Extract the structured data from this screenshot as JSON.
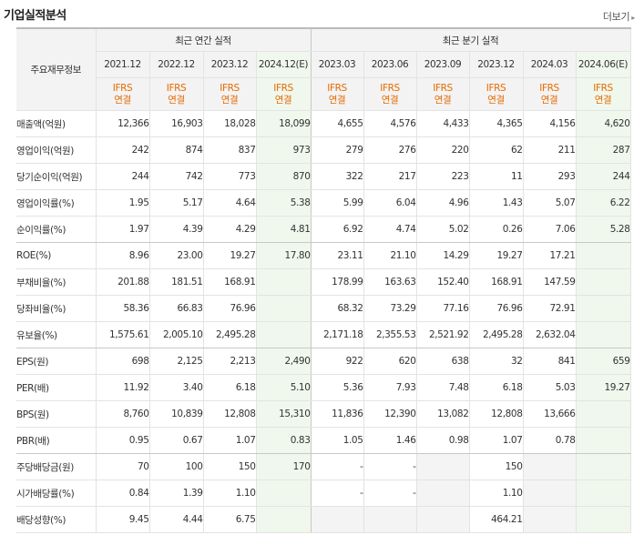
{
  "header": {
    "title": "기업실적분석",
    "more_label": "더보기",
    "more_icon": "arrow-right-icon"
  },
  "table": {
    "item_header": "주요재무정보",
    "group_annual": "최근 연간 실적",
    "group_quarter": "최근 분기 실적",
    "periods": [
      "2021.12",
      "2022.12",
      "2023.12",
      "2024.12(E)",
      "2023.03",
      "2023.06",
      "2023.09",
      "2023.12",
      "2024.03",
      "2024.06(E)"
    ],
    "standard_top": "IFRS",
    "standard_bottom": "연결",
    "estimate_color": "#f0f8ed",
    "standard_color": "#e66a00",
    "rows": [
      {
        "label": "매출액(억원)",
        "values": [
          "12,366",
          "16,903",
          "18,028",
          "18,099",
          "4,655",
          "4,576",
          "4,433",
          "4,365",
          "4,156",
          "4,620"
        ]
      },
      {
        "label": "영업이익(억원)",
        "values": [
          "242",
          "874",
          "837",
          "973",
          "279",
          "276",
          "220",
          "62",
          "211",
          "287"
        ]
      },
      {
        "label": "당기순이익(억원)",
        "values": [
          "244",
          "742",
          "773",
          "870",
          "322",
          "217",
          "223",
          "11",
          "293",
          "244"
        ]
      },
      {
        "label": "영업이익률(%)",
        "values": [
          "1.95",
          "5.17",
          "4.64",
          "5.38",
          "5.99",
          "6.04",
          "4.96",
          "1.43",
          "5.07",
          "6.22"
        ]
      },
      {
        "label": "순이익률(%)",
        "values": [
          "1.97",
          "4.39",
          "4.29",
          "4.81",
          "6.92",
          "4.74",
          "5.02",
          "0.26",
          "7.06",
          "5.28"
        ]
      },
      {
        "label": "ROE(%)",
        "values": [
          "8.96",
          "23.00",
          "19.27",
          "17.80",
          "23.11",
          "21.10",
          "14.29",
          "19.27",
          "17.21",
          ""
        ]
      },
      {
        "label": "부채비율(%)",
        "values": [
          "201.88",
          "181.51",
          "168.91",
          "",
          "178.99",
          "163.63",
          "152.40",
          "168.91",
          "147.59",
          ""
        ]
      },
      {
        "label": "당좌비율(%)",
        "values": [
          "58.36",
          "66.83",
          "76.96",
          "",
          "68.32",
          "73.29",
          "77.16",
          "76.96",
          "72.91",
          ""
        ]
      },
      {
        "label": "유보율(%)",
        "values": [
          "1,575.61",
          "2,005.10",
          "2,495.28",
          "",
          "2,171.18",
          "2,355.53",
          "2,521.92",
          "2,495.28",
          "2,632.04",
          ""
        ]
      },
      {
        "label": "EPS(원)",
        "values": [
          "698",
          "2,125",
          "2,213",
          "2,490",
          "922",
          "620",
          "638",
          "32",
          "841",
          "659"
        ]
      },
      {
        "label": "PER(배)",
        "values": [
          "11.92",
          "3.40",
          "6.18",
          "5.10",
          "5.36",
          "7.93",
          "7.48",
          "6.18",
          "5.03",
          "19.27"
        ]
      },
      {
        "label": "BPS(원)",
        "values": [
          "8,760",
          "10,839",
          "12,808",
          "15,310",
          "11,836",
          "12,390",
          "13,082",
          "12,808",
          "13,666",
          ""
        ]
      },
      {
        "label": "PBR(배)",
        "values": [
          "0.95",
          "0.67",
          "1.07",
          "0.83",
          "1.05",
          "1.46",
          "0.98",
          "1.07",
          "0.78",
          ""
        ]
      },
      {
        "label": "주당배당금(원)",
        "values": [
          "70",
          "100",
          "150",
          "170",
          "-",
          "-",
          "",
          "150",
          "",
          ""
        ]
      },
      {
        "label": "시가배당률(%)",
        "values": [
          "0.84",
          "1.39",
          "1.10",
          "",
          "-",
          "-",
          "",
          "1.10",
          "",
          ""
        ]
      },
      {
        "label": "배당성향(%)",
        "values": [
          "9.45",
          "4.44",
          "6.75",
          "",
          "",
          "",
          "",
          "464.21",
          "",
          ""
        ]
      }
    ]
  }
}
